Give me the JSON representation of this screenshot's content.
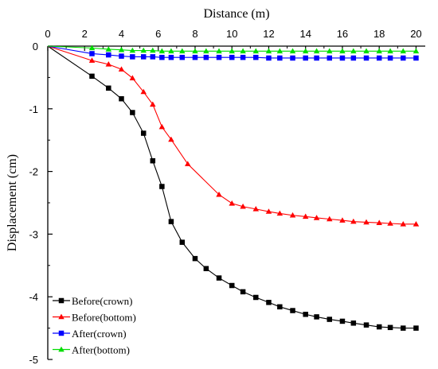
{
  "chart_data": {
    "type": "line",
    "xlabel": "Distance (m)",
    "ylabel": "Displacement (cm)",
    "xlim": [
      0,
      20.5
    ],
    "ylim": [
      -5,
      0
    ],
    "x_ticks": [
      0,
      2,
      4,
      6,
      8,
      10,
      12,
      14,
      16,
      18,
      20
    ],
    "y_ticks": [
      0,
      -1,
      -2,
      -3,
      -4,
      -5
    ],
    "x_axis_position": "top",
    "grid": false,
    "legend_position": "bottom-left",
    "series": [
      {
        "name": "Before(crown)",
        "color": "#000000",
        "marker": "square",
        "x": [
          0,
          2.4,
          3.3,
          4,
          4.6,
          5.2,
          5.7,
          6.2,
          6.7,
          7.3,
          8,
          8.6,
          9.3,
          10,
          10.6,
          11.3,
          12,
          12.6,
          13.3,
          14,
          14.6,
          15.3,
          16,
          16.6,
          17.3,
          18,
          18.6,
          19.3,
          20
        ],
        "y": [
          0,
          -0.48,
          -0.67,
          -0.84,
          -1.06,
          -1.39,
          -1.83,
          -2.24,
          -2.8,
          -3.13,
          -3.39,
          -3.55,
          -3.7,
          -3.82,
          -3.92,
          -4.01,
          -4.09,
          -4.16,
          -4.22,
          -4.28,
          -4.32,
          -4.36,
          -4.39,
          -4.42,
          -4.45,
          -4.48,
          -4.49,
          -4.5,
          -4.5
        ]
      },
      {
        "name": "Before(bottom)",
        "color": "#ff0000",
        "marker": "triangle",
        "x": [
          0,
          2.4,
          3.3,
          4,
          4.6,
          5.2,
          5.7,
          6.2,
          6.7,
          7.6,
          9.3,
          10,
          10.6,
          11.3,
          12,
          12.6,
          13.3,
          14,
          14.6,
          15.3,
          16,
          16.6,
          17.3,
          18,
          18.6,
          19.3,
          20
        ],
        "y": [
          0,
          -0.23,
          -0.29,
          -0.37,
          -0.51,
          -0.73,
          -0.93,
          -1.29,
          -1.49,
          -1.88,
          -2.37,
          -2.51,
          -2.56,
          -2.6,
          -2.64,
          -2.67,
          -2.7,
          -2.72,
          -2.74,
          -2.76,
          -2.78,
          -2.8,
          -2.81,
          -2.82,
          -2.83,
          -2.84,
          -2.84
        ]
      },
      {
        "name": "After(crown)",
        "color": "#0000ff",
        "marker": "square",
        "x": [
          0,
          2.4,
          3.3,
          4,
          4.6,
          5.2,
          5.7,
          6.2,
          6.7,
          7.3,
          8,
          8.6,
          9.3,
          10,
          10.6,
          11.3,
          12,
          12.6,
          13.3,
          14,
          14.6,
          15.3,
          16,
          16.6,
          17.3,
          18,
          18.6,
          19.3,
          20
        ],
        "y": [
          0,
          -0.12,
          -0.14,
          -0.16,
          -0.17,
          -0.17,
          -0.17,
          -0.18,
          -0.18,
          -0.18,
          -0.18,
          -0.18,
          -0.18,
          -0.18,
          -0.18,
          -0.18,
          -0.19,
          -0.19,
          -0.19,
          -0.19,
          -0.19,
          -0.19,
          -0.19,
          -0.19,
          -0.19,
          -0.19,
          -0.19,
          -0.19,
          -0.19
        ]
      },
      {
        "name": "After(bottom)",
        "color": "#00dd00",
        "marker": "triangle",
        "x": [
          0,
          2.4,
          3.3,
          4,
          4.6,
          5.2,
          5.7,
          6.2,
          6.7,
          7.3,
          8,
          8.6,
          9.3,
          10,
          10.6,
          11.3,
          12,
          12.6,
          13.3,
          14,
          14.6,
          15.3,
          16,
          16.6,
          17.3,
          18,
          18.6,
          19.3,
          20
        ],
        "y": [
          0,
          -0.03,
          -0.05,
          -0.06,
          -0.07,
          -0.07,
          -0.07,
          -0.08,
          -0.08,
          -0.08,
          -0.08,
          -0.08,
          -0.08,
          -0.08,
          -0.08,
          -0.08,
          -0.08,
          -0.08,
          -0.08,
          -0.08,
          -0.08,
          -0.08,
          -0.08,
          -0.08,
          -0.08,
          -0.08,
          -0.08,
          -0.08,
          -0.08
        ]
      }
    ]
  }
}
